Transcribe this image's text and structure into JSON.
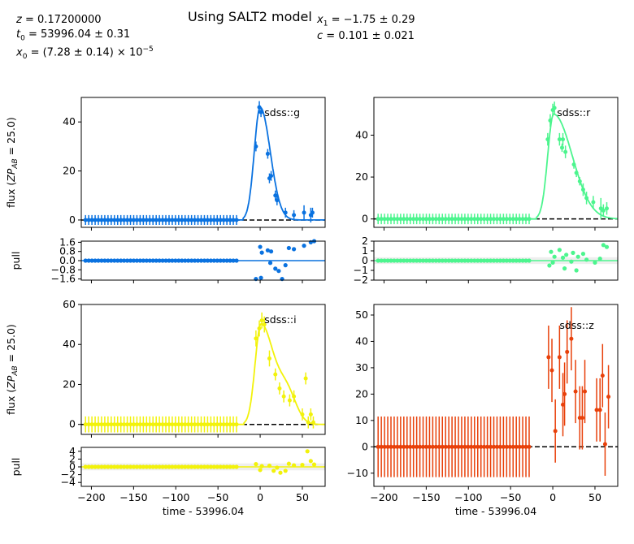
{
  "header": {
    "title": "Using SALT2 model",
    "params_left": [
      "z = 0.17200000",
      "t0 = 53996.04 ± 0.31",
      "x0 = (7.28 ± 0.14) × 10^-5"
    ],
    "params_right": [
      "x1 = −1.75 ± 0.29",
      "c = 0.101 ± 0.021"
    ]
  },
  "chart_data": [
    {
      "type": "scatter",
      "band": "sdss::g",
      "color": "#0a72e0",
      "xlabel": "",
      "ylabel": "flux (ZP_AB = 25.0)",
      "xlim": [
        -212,
        77
      ],
      "ylim": [
        -3,
        50
      ],
      "yticks": [
        0,
        20,
        40
      ],
      "xticks": [
        -200,
        -150,
        -100,
        -50,
        0,
        50
      ],
      "obs_x_range": [
        -207,
        -28
      ],
      "obs_n": 48,
      "baseline_err": 2,
      "peak_points": [
        {
          "x": -5,
          "y": 30,
          "err": 2
        },
        {
          "x": -1,
          "y": 46,
          "err": 2.5
        },
        {
          "x": 1,
          "y": 44,
          "err": 2
        },
        {
          "x": 9,
          "y": 27,
          "err": 2
        },
        {
          "x": 11,
          "y": 17,
          "err": 2
        },
        {
          "x": 13,
          "y": 18,
          "err": 2
        },
        {
          "x": 18,
          "y": 10,
          "err": 2
        },
        {
          "x": 20,
          "y": 8,
          "err": 2
        },
        {
          "x": 30,
          "y": 3,
          "err": 2
        },
        {
          "x": 40,
          "y": 2,
          "err": 2
        },
        {
          "x": 52,
          "y": 3,
          "err": 3
        },
        {
          "x": 60,
          "y": 2,
          "err": 3
        },
        {
          "x": 62,
          "y": 3,
          "err": 2
        }
      ],
      "model": {
        "peak": 46,
        "t_peak": 0,
        "rise": 7,
        "decline": 12
      },
      "pull": {
        "ylim": [
          -1.7,
          1.7
        ],
        "yticks": [
          -1.6,
          -0.8,
          0.0,
          0.8,
          1.6
        ],
        "ytick_labels": [
          "−1.6",
          "−0.8",
          "0.0",
          "0.8",
          "1.6"
        ],
        "band_halfwidth": 0.05,
        "points": [
          {
            "x": -5,
            "y": -1.6
          },
          {
            "x": 1,
            "y": -1.5
          },
          {
            "x": 0,
            "y": 1.2
          },
          {
            "x": 2,
            "y": 0.7
          },
          {
            "x": 9,
            "y": 0.9
          },
          {
            "x": 12,
            "y": -0.2
          },
          {
            "x": 13,
            "y": 0.8
          },
          {
            "x": 18,
            "y": -0.7
          },
          {
            "x": 22,
            "y": -0.9
          },
          {
            "x": 26,
            "y": -1.6
          },
          {
            "x": 30,
            "y": -0.4
          },
          {
            "x": 34,
            "y": 1.1
          },
          {
            "x": 40,
            "y": 1.0
          },
          {
            "x": 52,
            "y": 1.3
          },
          {
            "x": 60,
            "y": 1.6
          },
          {
            "x": 64,
            "y": 1.7
          }
        ]
      }
    },
    {
      "type": "scatter",
      "band": "sdss::r",
      "color": "#4cf58e",
      "xlabel": "",
      "ylabel": "",
      "xlim": [
        -212,
        77
      ],
      "ylim": [
        -4,
        58
      ],
      "yticks": [
        0,
        20,
        40
      ],
      "xticks": [
        -200,
        -150,
        -100,
        -50,
        0,
        50
      ],
      "obs_x_range": [
        -207,
        -28
      ],
      "obs_n": 48,
      "baseline_err": 2.5,
      "peak_points": [
        {
          "x": -6,
          "y": 38,
          "err": 3
        },
        {
          "x": -3,
          "y": 47,
          "err": 3
        },
        {
          "x": 0,
          "y": 52,
          "err": 3
        },
        {
          "x": 2,
          "y": 53,
          "err": 3
        },
        {
          "x": 8,
          "y": 38,
          "err": 3
        },
        {
          "x": 11,
          "y": 34,
          "err": 2
        },
        {
          "x": 12,
          "y": 38,
          "err": 3
        },
        {
          "x": 15,
          "y": 32,
          "err": 3
        },
        {
          "x": 25,
          "y": 26,
          "err": 2
        },
        {
          "x": 28,
          "y": 22,
          "err": 2
        },
        {
          "x": 32,
          "y": 18,
          "err": 2
        },
        {
          "x": 36,
          "y": 14,
          "err": 3
        },
        {
          "x": 40,
          "y": 10,
          "err": 3
        },
        {
          "x": 48,
          "y": 8,
          "err": 3
        },
        {
          "x": 57,
          "y": 5,
          "err": 5
        },
        {
          "x": 60,
          "y": 4,
          "err": 3
        },
        {
          "x": 64,
          "y": 5,
          "err": 3
        }
      ],
      "model": {
        "peak": 50,
        "t_peak": 1,
        "rise": 7,
        "decline": 22
      },
      "pull": {
        "ylim": [
          -2,
          2
        ],
        "yticks": [
          -2,
          -1,
          0,
          1,
          2
        ],
        "ytick_labels": [
          "−2",
          "−1",
          "0",
          "1",
          "2"
        ],
        "band_halfwidth": 0.35,
        "points": [
          {
            "x": -4,
            "y": -0.5
          },
          {
            "x": 0,
            "y": -0.2
          },
          {
            "x": -2,
            "y": 0.9
          },
          {
            "x": 2,
            "y": 0.4
          },
          {
            "x": 8,
            "y": 1.1
          },
          {
            "x": 12,
            "y": 0.3
          },
          {
            "x": 14,
            "y": -0.8
          },
          {
            "x": 16,
            "y": 0.6
          },
          {
            "x": 22,
            "y": -0.1
          },
          {
            "x": 24,
            "y": 0.8
          },
          {
            "x": 28,
            "y": -1.0
          },
          {
            "x": 30,
            "y": 0.4
          },
          {
            "x": 36,
            "y": 0.7
          },
          {
            "x": 40,
            "y": 0.1
          },
          {
            "x": 50,
            "y": -0.2
          },
          {
            "x": 56,
            "y": 0.2
          },
          {
            "x": 60,
            "y": 1.6
          },
          {
            "x": 64,
            "y": 1.4
          }
        ]
      }
    },
    {
      "type": "scatter",
      "band": "sdss::i",
      "color": "#f2f20a",
      "xlabel": "time - 53996.04",
      "ylabel": "flux (ZP_AB = 25.0)",
      "xlim": [
        -212,
        77
      ],
      "ylim": [
        -5,
        60
      ],
      "yticks": [
        0,
        20,
        40,
        60
      ],
      "xticks": [
        -200,
        -150,
        -100,
        -50,
        0,
        50
      ],
      "xtick_labels": [
        "−200",
        "−150",
        "−100",
        "−50",
        "0",
        "50"
      ],
      "obs_x_range": [
        -207,
        -28
      ],
      "obs_n": 48,
      "baseline_err": 4,
      "peak_points": [
        {
          "x": -5,
          "y": 43,
          "err": 4
        },
        {
          "x": -1,
          "y": 48,
          "err": 4
        },
        {
          "x": 2,
          "y": 52,
          "err": 4
        },
        {
          "x": 5,
          "y": 50,
          "err": 4
        },
        {
          "x": 11,
          "y": 33,
          "err": 4
        },
        {
          "x": 18,
          "y": 25,
          "err": 3
        },
        {
          "x": 23,
          "y": 18,
          "err": 3
        },
        {
          "x": 28,
          "y": 14,
          "err": 3
        },
        {
          "x": 35,
          "y": 12,
          "err": 3
        },
        {
          "x": 40,
          "y": 14,
          "err": 3
        },
        {
          "x": 50,
          "y": 5,
          "err": 3
        },
        {
          "x": 54,
          "y": 23,
          "err": 3
        },
        {
          "x": 57,
          "y": 1,
          "err": 3
        },
        {
          "x": 60,
          "y": 5,
          "err": 3
        },
        {
          "x": 63,
          "y": 1,
          "err": 3
        }
      ],
      "model": {
        "peak": 50,
        "t_peak": 1,
        "rise": 7,
        "decline": 15,
        "bump": {
          "amp": 15,
          "t": 32,
          "w": 11
        }
      },
      "pull": {
        "ylim": [
          -5,
          5
        ],
        "yticks": [
          -4,
          -2,
          0,
          2,
          4
        ],
        "ytick_labels": [
          "−4",
          "−2",
          "0",
          "2",
          "4"
        ],
        "band_halfwidth": 0.9,
        "points": [
          {
            "x": -5,
            "y": 0.7
          },
          {
            "x": 0,
            "y": -0.8
          },
          {
            "x": 2,
            "y": 0.2
          },
          {
            "x": 11,
            "y": 0.3
          },
          {
            "x": 16,
            "y": -1.0
          },
          {
            "x": 20,
            "y": -0.2
          },
          {
            "x": 24,
            "y": -1.5
          },
          {
            "x": 30,
            "y": -1.0
          },
          {
            "x": 34,
            "y": 0.8
          },
          {
            "x": 40,
            "y": 0.4
          },
          {
            "x": 50,
            "y": 0.5
          },
          {
            "x": 56,
            "y": 4.0
          },
          {
            "x": 60,
            "y": 1.5
          },
          {
            "x": 64,
            "y": 0.6
          }
        ]
      }
    },
    {
      "type": "scatter",
      "band": "sdss::z",
      "color": "#e8400a",
      "xlabel": "time - 53996.04",
      "ylabel": "",
      "xlim": [
        -212,
        77
      ],
      "ylim": [
        -15,
        54
      ],
      "yticks": [
        -10,
        0,
        10,
        20,
        30,
        40,
        50
      ],
      "ytick_labels": [
        "−10",
        "0",
        "10",
        "20",
        "30",
        "40",
        "50"
      ],
      "xticks": [
        -200,
        -150,
        -100,
        -50,
        0,
        50
      ],
      "xtick_labels": [
        "−200",
        "−150",
        "−100",
        "−50",
        "0",
        "50"
      ],
      "obs_x_range": [
        -207,
        -28
      ],
      "obs_n": 48,
      "baseline_err": 11.5,
      "peak_points": [
        {
          "x": -5,
          "y": 34,
          "err": 12
        },
        {
          "x": -1,
          "y": 29,
          "err": 12
        },
        {
          "x": 3,
          "y": 6,
          "err": 12
        },
        {
          "x": 8,
          "y": 34,
          "err": 12
        },
        {
          "x": 12,
          "y": 16,
          "err": 12
        },
        {
          "x": 14,
          "y": 20,
          "err": 12
        },
        {
          "x": 17,
          "y": 36,
          "err": 12
        },
        {
          "x": 22,
          "y": 41,
          "err": 12
        },
        {
          "x": 27,
          "y": 21,
          "err": 12
        },
        {
          "x": 32,
          "y": 11,
          "err": 12
        },
        {
          "x": 35,
          "y": 11,
          "err": 12
        },
        {
          "x": 38,
          "y": 21,
          "err": 12
        },
        {
          "x": 52,
          "y": 14,
          "err": 12
        },
        {
          "x": 56,
          "y": 14,
          "err": 12
        },
        {
          "x": 59,
          "y": 27,
          "err": 12
        },
        {
          "x": 62,
          "y": 1,
          "err": 12
        },
        {
          "x": 66,
          "y": 19,
          "err": 12
        }
      ]
    }
  ]
}
